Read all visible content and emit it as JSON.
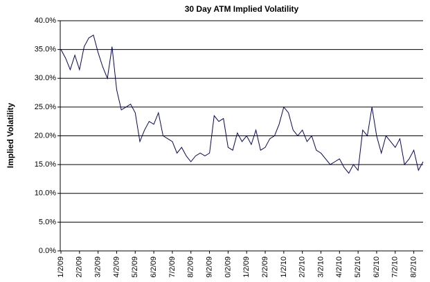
{
  "chart_data": {
    "type": "line",
    "title": "30 Day ATM Implied Volatility",
    "y_label": "Implied Volatility",
    "categories": [
      "1/2/09",
      null,
      null,
      null,
      "2/2/09",
      null,
      null,
      null,
      "3/2/09",
      null,
      null,
      null,
      "4/2/09",
      null,
      null,
      null,
      "5/2/09",
      null,
      null,
      null,
      "6/2/09",
      null,
      null,
      null,
      "7/2/09",
      null,
      null,
      null,
      "8/2/09",
      null,
      null,
      null,
      "9/2/09",
      null,
      null,
      null,
      "0/2/09",
      null,
      null,
      null,
      "1/2/09",
      null,
      null,
      null,
      "2/2/09",
      null,
      null,
      null,
      "1/2/10",
      null,
      null,
      null,
      "2/2/10",
      null,
      null,
      null,
      "3/2/10",
      null,
      null,
      null,
      "4/2/10",
      null,
      null,
      null,
      "5/2/10",
      null,
      null,
      null,
      "6/2/10",
      null,
      null,
      null,
      "7/2/10",
      null,
      null,
      null,
      "8/2/10",
      null,
      null
    ],
    "series": [
      {
        "name": "Implied Volatility",
        "color": "#000080",
        "values": [
          35,
          33.5,
          31.5,
          34,
          31.5,
          35.5,
          37,
          37.5,
          34.5,
          32,
          30,
          35.5,
          28,
          24.5,
          25,
          25.5,
          24,
          19,
          21,
          22.5,
          22,
          24,
          20,
          19.5,
          19,
          17,
          18,
          16.5,
          15.5,
          16.5,
          17,
          16.5,
          17,
          23.5,
          22.5,
          23,
          18,
          17.5,
          20.5,
          19,
          20,
          18.5,
          21,
          17.5,
          18,
          19.5,
          20,
          22,
          25,
          24,
          21,
          20,
          21,
          19,
          20,
          17.5,
          17,
          16,
          15,
          15.5,
          16,
          14.5,
          13.5,
          15,
          14,
          21,
          20,
          25,
          20,
          17,
          20,
          19,
          18,
          19.5,
          15,
          16,
          17.5,
          14,
          15.5
        ]
      }
    ],
    "ylim": [
      0,
      40
    ],
    "yticks": [
      {
        "value": 0,
        "label": "0.0%"
      },
      {
        "value": 5,
        "label": "5.0%"
      },
      {
        "value": 10,
        "label": "10.0%"
      },
      {
        "value": 15,
        "label": "15.0%"
      },
      {
        "value": 20,
        "label": "20.0%"
      },
      {
        "value": 25,
        "label": "25.0%"
      },
      {
        "value": 30,
        "label": "30.0%"
      },
      {
        "value": 35,
        "label": "35.0%"
      },
      {
        "value": 40,
        "label": "40.0%"
      }
    ],
    "grid": true
  }
}
